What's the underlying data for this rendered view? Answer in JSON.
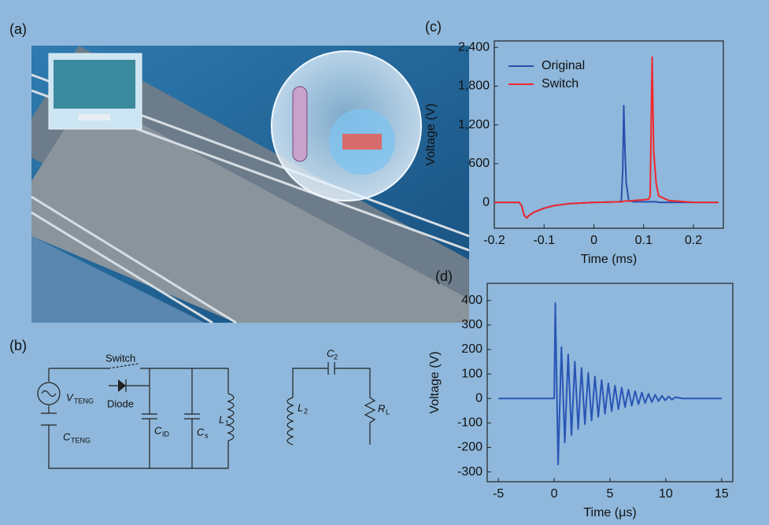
{
  "panels": {
    "a": "(a)",
    "b": "(b)",
    "c": "(c)",
    "d": "(d)"
  },
  "circuit": {
    "switch": "Switch",
    "diode": "Diode",
    "v_teng": {
      "symbol": "V",
      "sub": "TENG"
    },
    "c_teng": {
      "symbol": "C",
      "sub": "TENG"
    },
    "c_id": {
      "symbol": "C",
      "sub": "ID"
    },
    "c_s": {
      "symbol": "C",
      "sub": "s"
    },
    "l1": {
      "symbol": "L",
      "sub": "1"
    },
    "l2": {
      "symbol": "L",
      "sub": "2"
    },
    "c2": {
      "symbol": "C",
      "sub": "2"
    },
    "r_l": {
      "symbol": "R",
      "sub": "L"
    }
  },
  "chart_data": [
    {
      "type": "line",
      "xlabel": "Time (ms)",
      "ylabel": "Voltage (V)",
      "x": [
        -0.2,
        -0.15,
        -0.145,
        -0.14,
        -0.135,
        -0.13,
        -0.12,
        -0.1,
        -0.08,
        -0.05,
        0,
        0.05,
        0.055,
        0.058,
        0.06,
        0.062,
        0.065,
        0.07,
        0.08,
        0.1,
        0.11,
        0.113,
        0.115,
        0.117,
        0.12,
        0.125,
        0.13,
        0.15,
        0.2,
        0.25
      ],
      "series": [
        {
          "name": "Original",
          "color": "#2a4fae",
          "values": [
            0,
            0,
            -50,
            -200,
            -240,
            -200,
            -150,
            -90,
            -50,
            -20,
            0,
            10,
            20,
            500,
            1500,
            900,
            300,
            30,
            10,
            10,
            10,
            10,
            10,
            10,
            10,
            10,
            0,
            0,
            0,
            0
          ]
        },
        {
          "name": "Switch",
          "color": "#f0282d",
          "values": [
            0,
            0,
            -50,
            -200,
            -240,
            -200,
            -150,
            -90,
            -50,
            -20,
            0,
            10,
            10,
            10,
            20,
            20,
            20,
            20,
            30,
            40,
            50,
            100,
            1200,
            2250,
            800,
            300,
            100,
            30,
            0,
            0
          ]
        }
      ],
      "xlim": [
        -0.2,
        0.26
      ],
      "ylim": [
        -400,
        2500
      ],
      "xticks": [
        -0.2,
        -0.1,
        0,
        0.1,
        0.2
      ],
      "yticks": [
        0,
        600,
        {
          "value": 1200,
          "label": "1,200"
        },
        {
          "value": 1800,
          "label": "1,800"
        },
        {
          "value": 2400,
          "label": "2,400"
        }
      ],
      "legend": "upper-left"
    },
    {
      "type": "line",
      "xlabel": "Time (μs)",
      "ylabel": "Voltage (V)",
      "x": [
        -5,
        0,
        0.1,
        0.35,
        0.65,
        0.95,
        1.25,
        1.55,
        1.85,
        2.15,
        2.45,
        2.75,
        3.05,
        3.35,
        3.65,
        3.95,
        4.25,
        4.55,
        4.85,
        5.15,
        5.45,
        5.75,
        6.05,
        6.35,
        6.65,
        6.95,
        7.25,
        7.55,
        7.85,
        8.15,
        8.45,
        8.75,
        9.05,
        9.35,
        9.65,
        9.95,
        10.25,
        10.55,
        10.85,
        11.5,
        15
      ],
      "series": [
        {
          "color": "#2a55b5",
          "values": [
            0,
            0,
            390,
            -270,
            210,
            -180,
            180,
            -150,
            150,
            -125,
            125,
            -105,
            105,
            -90,
            90,
            -75,
            75,
            -62,
            62,
            -52,
            52,
            -44,
            44,
            -36,
            36,
            -30,
            30,
            -24,
            24,
            -19,
            19,
            -15,
            15,
            -11,
            11,
            -8,
            8,
            -5,
            5,
            0,
            0
          ]
        }
      ],
      "xlim": [
        -6,
        16
      ],
      "ylim": [
        -340,
        470
      ],
      "xticks": [
        -5,
        0,
        5,
        10,
        15
      ],
      "yticks": [
        -300,
        -200,
        -100,
        0,
        100,
        200,
        300,
        400
      ]
    }
  ]
}
